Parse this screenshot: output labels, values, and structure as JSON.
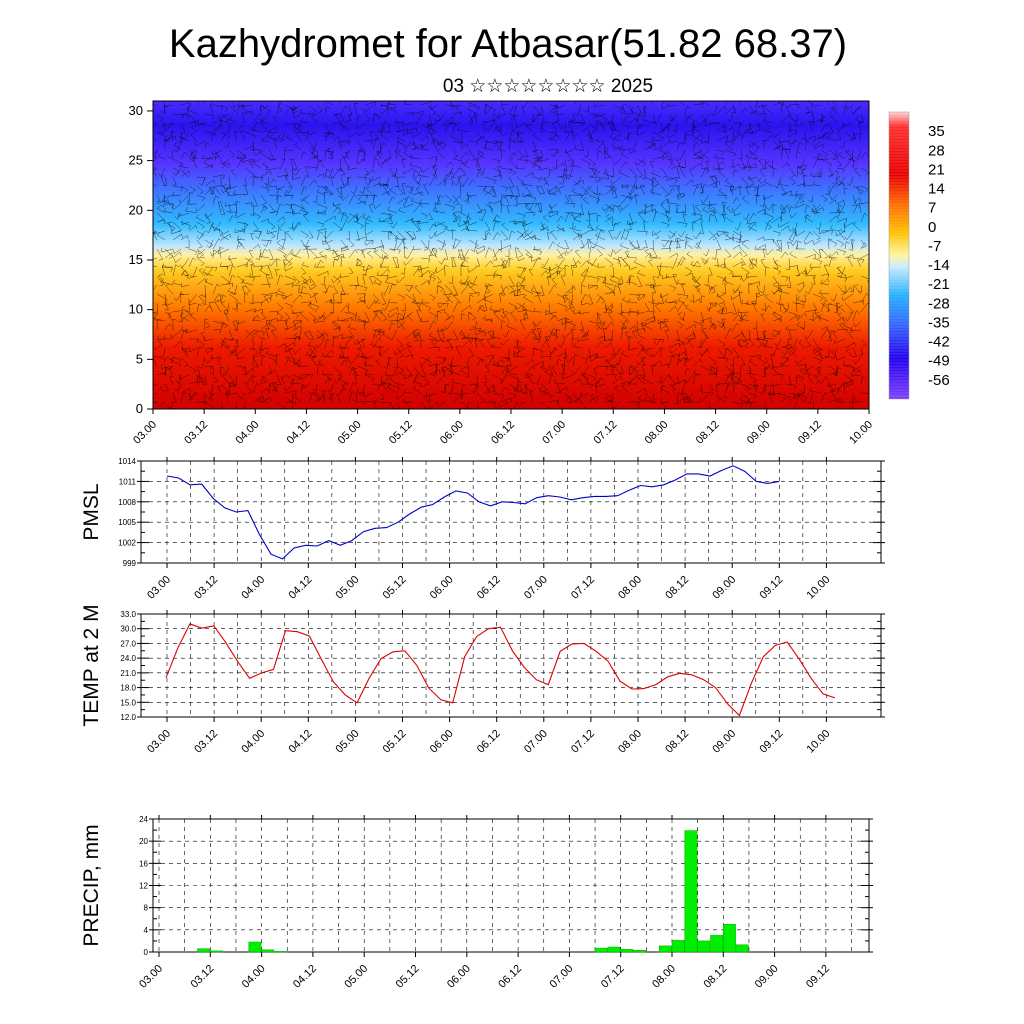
{
  "title": "Kazhydromet for Atbasar(51.82 68.37)",
  "subtitle": "03 ☆☆☆☆☆☆☆☆ 2025",
  "x_tick_labels": [
    "03.00",
    "03.12",
    "04.00",
    "04.12",
    "05.00",
    "05.12",
    "06.00",
    "06.12",
    "07.00",
    "07.12",
    "08.00",
    "08.12",
    "09.00",
    "09.12",
    "10.00"
  ],
  "colors": {
    "pmsl": "#0000cc",
    "temp": "#dd0000",
    "precip": "#00ee00"
  },
  "chart_data": [
    {
      "type": "heatmap",
      "name": "cross-section",
      "yticks": [
        0,
        5,
        10,
        15,
        20,
        25,
        30
      ],
      "ylim": [
        0,
        31
      ],
      "colorbar_labels": [
        "35",
        "28",
        "21",
        "14",
        "7",
        "0",
        "-7",
        "-14",
        "-21",
        "-28",
        "-35",
        "-42",
        "-49",
        "-56"
      ],
      "colorbar_range": [
        -63,
        42
      ]
    },
    {
      "type": "line",
      "ylabel": "PMSL",
      "ylim": [
        999,
        1014
      ],
      "yticks": [
        999,
        1002,
        1005,
        1008,
        1011,
        1014
      ],
      "xlim": [
        0,
        14
      ],
      "series": [
        {
          "x": [
            0,
            0.5,
            1,
            1.5,
            2,
            2.5,
            3,
            3.5,
            4,
            4.5,
            5,
            5.5,
            6,
            6.5,
            7,
            7.5,
            8,
            8.5,
            9,
            9.5,
            10,
            10.5,
            11,
            11.5,
            12,
            12.5,
            13
          ],
          "values": [
            1011.8,
            1011.5,
            1010.5,
            1010.6,
            1008.5,
            1007.1,
            1006.5,
            1006.7,
            1003.2,
            1000.3,
            999.6,
            1001.2,
            1001.6,
            1001.5,
            1002.3,
            1001.6,
            1002.3,
            1003.6,
            1004.1,
            1004.2,
            1005.0,
            1006.2,
            1007.2,
            1007.6,
            1008.7,
            1009.6,
            1009.3
          ]
        },
        {
          "x": [
            13.5,
            14,
            14.5,
            15,
            15.5,
            16,
            16.5,
            17,
            17.5,
            18,
            18.5,
            19,
            19.5,
            20,
            20.5,
            21,
            21.5,
            22,
            22.5,
            23,
            23.5,
            24,
            24.5,
            25,
            25.5,
            26,
            26.5
          ],
          "values": [
            1008.0,
            1007.4,
            1008.0,
            1007.9,
            1007.7,
            1008.6,
            1008.9,
            1008.7,
            1008.3,
            1008.6,
            1008.8,
            1008.8,
            1008.9,
            1009.7,
            1010.4,
            1010.2,
            1010.5,
            1011.2,
            1012.1,
            1012.1,
            1011.8,
            1012.6,
            1013.3,
            1012.5,
            1011.0,
            1010.7,
            1011.0
          ]
        }
      ]
    },
    {
      "type": "line",
      "ylabel": "TEMP at 2 M",
      "ylim": [
        12,
        33
      ],
      "yticks": [
        12.0,
        15.0,
        18.0,
        21.0,
        24.0,
        27.0,
        30.0,
        33.0
      ],
      "series": [
        {
          "values": [
            20.0,
            26.1,
            31.0,
            30.1,
            30.6,
            27.2,
            23.3,
            19.9,
            21.0,
            21.7,
            29.6,
            29.4,
            28.5,
            23.8,
            19.2,
            16.5,
            14.9,
            19.9,
            23.9,
            25.3,
            25.5,
            22.5,
            17.9,
            15.5,
            14.9,
            24.3,
            28.4,
            30.0,
            30.3,
            25.5,
            22.1,
            19.6,
            18.6,
            25.4,
            26.9,
            27.0,
            25.4,
            23.4,
            19.3,
            17.7,
            17.8,
            18.6,
            20.2,
            20.9,
            20.6,
            19.6,
            18.0,
            14.7,
            12.3,
            18.9,
            24.3,
            26.6,
            27.3,
            23.8,
            19.9,
            16.7,
            15.9
          ]
        }
      ]
    },
    {
      "type": "bar",
      "ylabel": "PRECIP, mm",
      "ylim": [
        0,
        24
      ],
      "yticks": [
        0,
        4,
        8,
        12,
        16,
        20,
        24
      ],
      "bars": [
        {
          "slot": 3,
          "value": 0.6
        },
        {
          "slot": 4,
          "value": 0.2
        },
        {
          "slot": 7,
          "value": 1.8
        },
        {
          "slot": 8,
          "value": 0.4
        },
        {
          "slot": 9,
          "value": 0.1
        },
        {
          "slot": 34,
          "value": 0.7
        },
        {
          "slot": 35,
          "value": 0.9
        },
        {
          "slot": 36,
          "value": 0.5
        },
        {
          "slot": 37,
          "value": 0.3
        },
        {
          "slot": 39,
          "value": 1.1
        },
        {
          "slot": 40,
          "value": 2.1
        },
        {
          "slot": 41,
          "value": 21.9
        },
        {
          "slot": 42,
          "value": 2.0
        },
        {
          "slot": 43,
          "value": 3.0
        },
        {
          "slot": 44,
          "value": 5.0
        },
        {
          "slot": 45,
          "value": 1.3
        }
      ]
    }
  ]
}
